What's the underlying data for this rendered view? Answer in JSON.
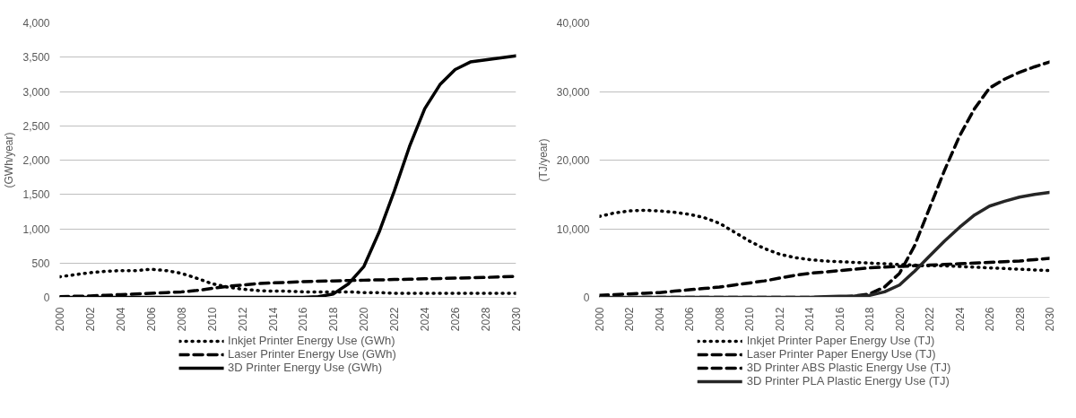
{
  "chart_data": [
    {
      "type": "line",
      "ylabel": "(GWh/year)",
      "x": [
        2000,
        2001,
        2002,
        2003,
        2004,
        2005,
        2006,
        2007,
        2008,
        2009,
        2010,
        2011,
        2012,
        2013,
        2014,
        2015,
        2016,
        2017,
        2018,
        2019,
        2020,
        2021,
        2022,
        2023,
        2024,
        2025,
        2026,
        2027,
        2028,
        2029,
        2030
      ],
      "xlim": [
        2000,
        2030
      ],
      "xticks": [
        2000,
        2002,
        2004,
        2006,
        2008,
        2010,
        2012,
        2014,
        2016,
        2018,
        2020,
        2022,
        2024,
        2026,
        2028,
        2030
      ],
      "ylim": [
        0,
        4000
      ],
      "yticks": [
        {
          "value": 0,
          "label": "0"
        },
        {
          "value": 500,
          "label": "500"
        },
        {
          "value": 1000,
          "label": "1,000"
        },
        {
          "value": 1500,
          "label": "1,500"
        },
        {
          "value": 2000,
          "label": "2,000"
        },
        {
          "value": 2500,
          "label": "2,500"
        },
        {
          "value": 3000,
          "label": "3,000"
        },
        {
          "value": 3500,
          "label": "3,500"
        },
        {
          "value": 4000,
          "label": "4,000"
        }
      ],
      "grid": "y",
      "legend": "bottom",
      "series": [
        {
          "name": "Inkjet Printer Energy Use (GWh)",
          "color": "#000000",
          "line_style": "dotted",
          "values": [
            300,
            330,
            360,
            380,
            390,
            390,
            410,
            390,
            350,
            280,
            200,
            150,
            120,
            100,
            90,
            90,
            80,
            80,
            80,
            80,
            70,
            70,
            60,
            60,
            60,
            60,
            60,
            60,
            60,
            60,
            60
          ]
        },
        {
          "name": "Laser Printer Energy Use (GWh)",
          "color": "#000000",
          "line_style": "dashed",
          "values": [
            10,
            15,
            20,
            30,
            40,
            50,
            60,
            70,
            80,
            100,
            130,
            160,
            180,
            200,
            210,
            220,
            230,
            235,
            240,
            245,
            250,
            255,
            260,
            265,
            270,
            275,
            280,
            285,
            290,
            300,
            305
          ]
        },
        {
          "name": "3D Printer Energy Use (GWh)",
          "color": "#000000",
          "line_style": "solid",
          "values": [
            0,
            0,
            0,
            0,
            0,
            0,
            0,
            0,
            0,
            0,
            0,
            0,
            0,
            0,
            0,
            0,
            0,
            10,
            50,
            200,
            450,
            950,
            1550,
            2200,
            2750,
            3100,
            3320,
            3430,
            3460,
            3490,
            3520
          ]
        }
      ]
    },
    {
      "type": "line",
      "ylabel": "(TJ/year)",
      "x": [
        2000,
        2001,
        2002,
        2003,
        2004,
        2005,
        2006,
        2007,
        2008,
        2009,
        2010,
        2011,
        2012,
        2013,
        2014,
        2015,
        2016,
        2017,
        2018,
        2019,
        2020,
        2021,
        2022,
        2023,
        2024,
        2025,
        2026,
        2027,
        2028,
        2029,
        2030
      ],
      "xlim": [
        2000,
        2030
      ],
      "xticks": [
        2000,
        2002,
        2004,
        2006,
        2008,
        2010,
        2012,
        2014,
        2016,
        2018,
        2020,
        2022,
        2024,
        2026,
        2028,
        2030
      ],
      "ylim": [
        0,
        40000
      ],
      "yticks": [
        {
          "value": 0,
          "label": "0"
        },
        {
          "value": 10000,
          "label": "10,000"
        },
        {
          "value": 20000,
          "label": "20,000"
        },
        {
          "value": 30000,
          "label": "30,000"
        },
        {
          "value": 40000,
          "label": "40,000"
        }
      ],
      "grid": "y",
      "legend": "bottom",
      "series": [
        {
          "name": "Inkjet Printer Paper Energy Use (TJ)",
          "color": "#000000",
          "line_style": "dotted",
          "values": [
            11800,
            12300,
            12600,
            12700,
            12600,
            12400,
            12100,
            11600,
            10800,
            9500,
            8200,
            7100,
            6300,
            5800,
            5500,
            5300,
            5200,
            5100,
            5000,
            4900,
            4800,
            4700,
            4600,
            4600,
            4500,
            4400,
            4300,
            4200,
            4100,
            4000,
            3900
          ]
        },
        {
          "name": "Laser Printer Paper Energy Use (TJ)",
          "color": "#000000",
          "line_style": "dashed",
          "values": [
            300,
            400,
            500,
            600,
            700,
            900,
            1100,
            1300,
            1500,
            1800,
            2100,
            2400,
            2800,
            3200,
            3500,
            3700,
            3900,
            4100,
            4300,
            4400,
            4500,
            4600,
            4700,
            4800,
            4900,
            5000,
            5100,
            5200,
            5300,
            5500,
            5700
          ]
        },
        {
          "name": "3D Printer ABS Plastic Energy Use (TJ)",
          "color": "#000000",
          "line_style": "dashed",
          "values": [
            0,
            0,
            0,
            0,
            0,
            0,
            0,
            0,
            0,
            0,
            0,
            0,
            0,
            0,
            0,
            0,
            0,
            200,
            500,
            1500,
            3500,
            7500,
            13000,
            18500,
            23500,
            27500,
            30500,
            31800,
            32800,
            33600,
            34300
          ]
        },
        {
          "name": "3D Printer PLA Plastic Energy Use (TJ)",
          "color": "#262626",
          "line_style": "solid",
          "values": [
            0,
            0,
            0,
            0,
            0,
            0,
            0,
            0,
            0,
            0,
            0,
            0,
            0,
            0,
            0,
            100,
            150,
            200,
            300,
            800,
            1800,
            3800,
            6000,
            8200,
            10200,
            12000,
            13300,
            14000,
            14600,
            15000,
            15300
          ]
        }
      ]
    }
  ]
}
